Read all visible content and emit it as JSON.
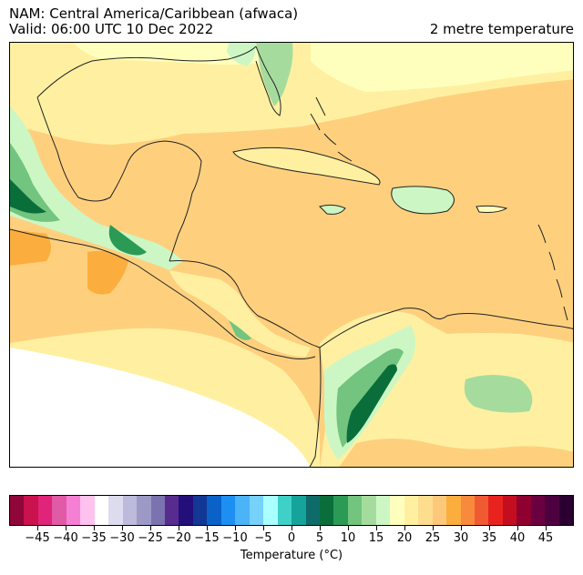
{
  "header": {
    "model_line": "NAM: Central America/Caribbean (afwaca)",
    "valid_line": "Valid: 06:00 UTC 10 Dec 2022",
    "variable": "2 metre temperature"
  },
  "colorbar": {
    "label": "Temperature (°C)",
    "ticks": [
      "−45",
      "−40",
      "−35",
      "−30",
      "−25",
      "−20",
      "−15",
      "−10",
      "−5",
      "0",
      "5",
      "10",
      "15",
      "20",
      "25",
      "30",
      "35",
      "40",
      "45"
    ],
    "colors": [
      "#8f0638",
      "#c9124e",
      "#e0247a",
      "#e05aa6",
      "#f57fd2",
      "#ffc2ee",
      "#ffffff",
      "#dcdcee",
      "#bdbbdc",
      "#9d99c7",
      "#7b72b0",
      "#582c8f",
      "#230f7a",
      "#123794",
      "#0a62c9",
      "#1e8ff2",
      "#4bb3f7",
      "#76d1fb",
      "#aaffff",
      "#3fd1c8",
      "#15a39c",
      "#0f6a6a",
      "#0a6e3b",
      "#2a9a55",
      "#72c47e",
      "#a5dc9e",
      "#ccf7c4",
      "#ffffbd",
      "#fff0a1",
      "#fedd8f",
      "#fec87a",
      "#fbae3e",
      "#f98a3d",
      "#f05a33",
      "#e8231f",
      "#c40e1f",
      "#8f0030",
      "#6b0040",
      "#4d0040",
      "#2a0030"
    ]
  },
  "map_colors": {
    "warm_ocean": "#fed07e",
    "mild": "#fff0a1",
    "pale": "#ffffbd",
    "light_green": "#ccf7c4",
    "green": "#a5dc9e",
    "mid_green": "#72c47e",
    "dark_green": "#0a6e3b",
    "hot": "#fbae3e",
    "no_data": "#ffffff"
  }
}
